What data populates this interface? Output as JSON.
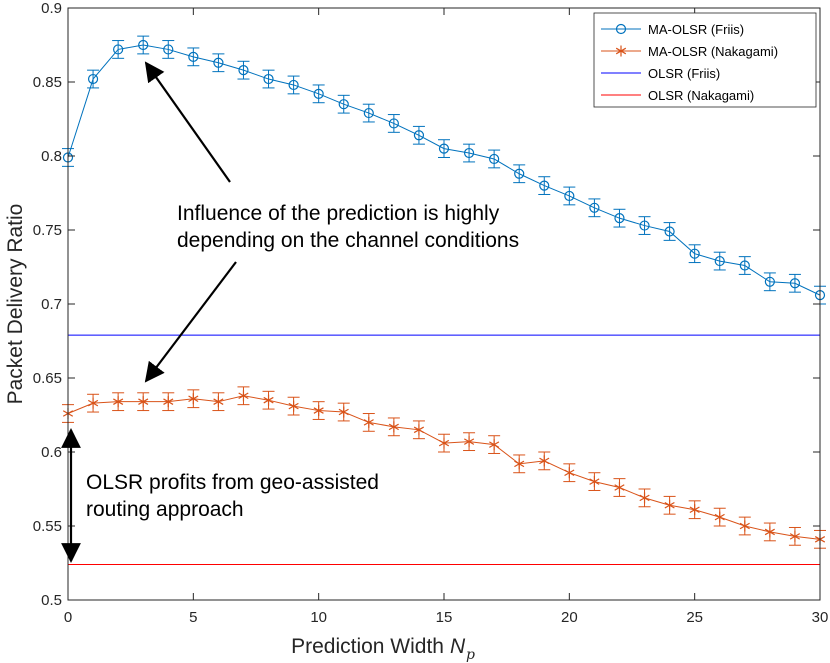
{
  "chart_data": {
    "type": "line",
    "xlabel": "Prediction Width",
    "xlabel_symbol": "N",
    "xlabel_subscript": "p",
    "ylabel": "Packet Delivery Ratio",
    "xlim": [
      0,
      30
    ],
    "ylim": [
      0.5,
      0.9
    ],
    "x_ticks": [
      "0",
      "5",
      "10",
      "15",
      "20",
      "25",
      "30"
    ],
    "y_ticks": [
      "0.5",
      "0.55",
      "0.6",
      "0.65",
      "0.7",
      "0.75",
      "0.8",
      "0.85",
      "0.9"
    ],
    "grid": false,
    "legend_position": "top-right",
    "x": [
      0,
      1,
      2,
      3,
      4,
      5,
      6,
      7,
      8,
      9,
      10,
      11,
      12,
      13,
      14,
      15,
      16,
      17,
      18,
      19,
      20,
      21,
      22,
      23,
      24,
      25,
      26,
      27,
      28,
      29,
      30
    ],
    "series": [
      {
        "name": "MA-OLSR (Friis)",
        "color": "#0072BD",
        "marker": "circle",
        "values": [
          0.799,
          0.852,
          0.872,
          0.875,
          0.872,
          0.867,
          0.863,
          0.858,
          0.852,
          0.848,
          0.842,
          0.835,
          0.829,
          0.822,
          0.814,
          0.805,
          0.802,
          0.798,
          0.788,
          0.78,
          0.773,
          0.765,
          0.758,
          0.753,
          0.749,
          0.734,
          0.729,
          0.726,
          0.715,
          0.714,
          0.706
        ],
        "error": 0.006
      },
      {
        "name": "MA-OLSR (Nakagami)",
        "color": "#D95319",
        "marker": "asterisk",
        "values": [
          0.626,
          0.633,
          0.634,
          0.634,
          0.634,
          0.636,
          0.634,
          0.638,
          0.635,
          0.631,
          0.628,
          0.627,
          0.62,
          0.617,
          0.615,
          0.606,
          0.607,
          0.605,
          0.592,
          0.594,
          0.586,
          0.58,
          0.576,
          0.569,
          0.564,
          0.561,
          0.556,
          0.55,
          0.546,
          0.543,
          0.541
        ],
        "error": 0.006
      },
      {
        "name": "OLSR (Friis)",
        "color": "#0000FF",
        "marker": "none",
        "constant": 0.679
      },
      {
        "name": "OLSR (Nakagami)",
        "color": "#FF0000",
        "marker": "none",
        "constant": 0.524
      }
    ],
    "annotations": [
      {
        "lines": [
          "Influence of the prediction is highly",
          "depending on the channel conditions"
        ]
      },
      {
        "lines": [
          "OLSR profits from geo-assisted",
          "routing approach"
        ]
      }
    ]
  }
}
